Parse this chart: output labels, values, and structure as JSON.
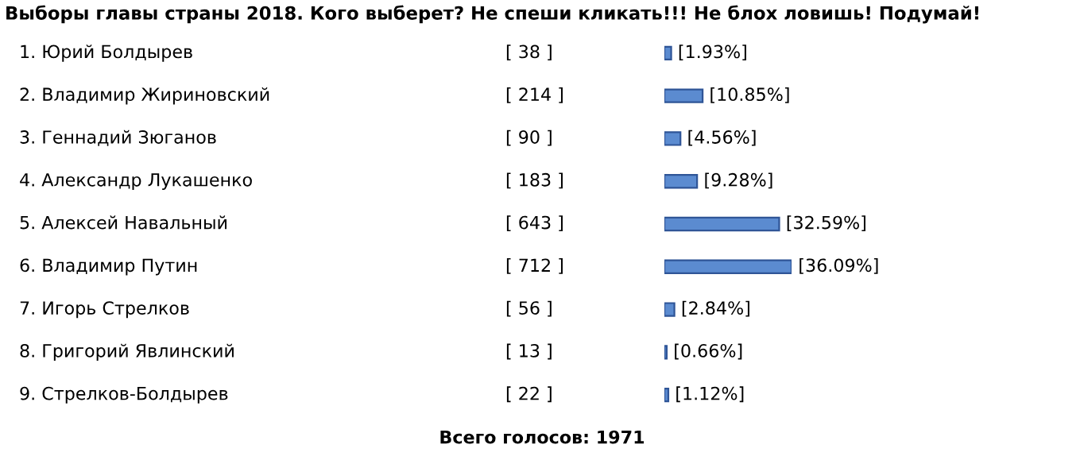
{
  "chart_data": {
    "type": "bar",
    "orientation": "horizontal",
    "title": "Выборы главы страны 2018. Кого выберет? Не спеши кликать!!! Не блох ловишь! Подумай!",
    "categories": [
      "1. Юрий Болдырев",
      "2. Владимир Жириновский",
      "3. Геннадий Зюганов",
      "4. Александр Лукашенко",
      "5. Алексей Навальный",
      "6. Владимир Путин",
      "7. Игорь Стрелков",
      "8. Григорий Явлинский",
      "9. Стрелков-Болдырев"
    ],
    "values": [
      1.93,
      10.85,
      4.56,
      9.28,
      32.59,
      36.09,
      2.84,
      0.66,
      1.12
    ],
    "color": "#5b8bd0",
    "value_labels": [
      "[1.93%]",
      "[10.85%]",
      "[4.56%]",
      "[9.28%]",
      "[32.59%]",
      "[36.09%]",
      "[2.84%]",
      "[0.66%]",
      "[1.12%]"
    ],
    "annotations": [
      "[ 38 ]",
      "[ 214 ]",
      "[ 90 ]",
      "[ 183 ]",
      "[ 643 ]",
      "[ 712 ]",
      "[ 56 ]",
      "[ 13 ]",
      "[ 22 ]",
      "Всего голосов: 1971"
    ]
  }
}
